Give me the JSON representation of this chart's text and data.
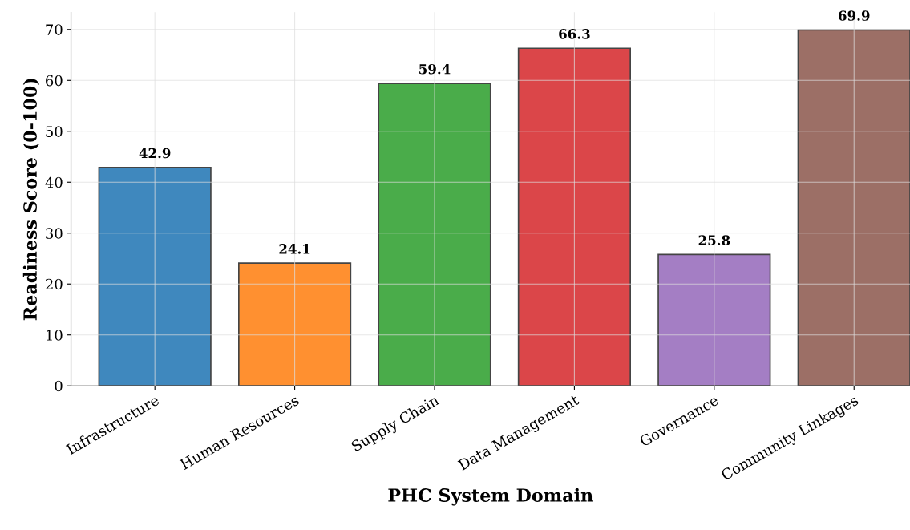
{
  "chart_data": {
    "type": "bar",
    "xlabel": "PHC System Domain",
    "ylabel": "Readiness Score (0-100)",
    "categories": [
      "Infrastructure",
      "Human Resources",
      "Supply Chain",
      "Data Management",
      "Governance",
      "Community Linkages"
    ],
    "values": [
      42.9,
      24.1,
      59.4,
      66.3,
      25.8,
      69.9
    ],
    "colors": [
      "#3f88be",
      "#ff9030",
      "#4aac4a",
      "#db4649",
      "#a47ec4",
      "#9c6f66"
    ],
    "ylim": [
      0,
      73.4
    ],
    "yticks": [
      0,
      10,
      20,
      30,
      40,
      50,
      60,
      70
    ],
    "grid": true,
    "data_labels": true
  }
}
